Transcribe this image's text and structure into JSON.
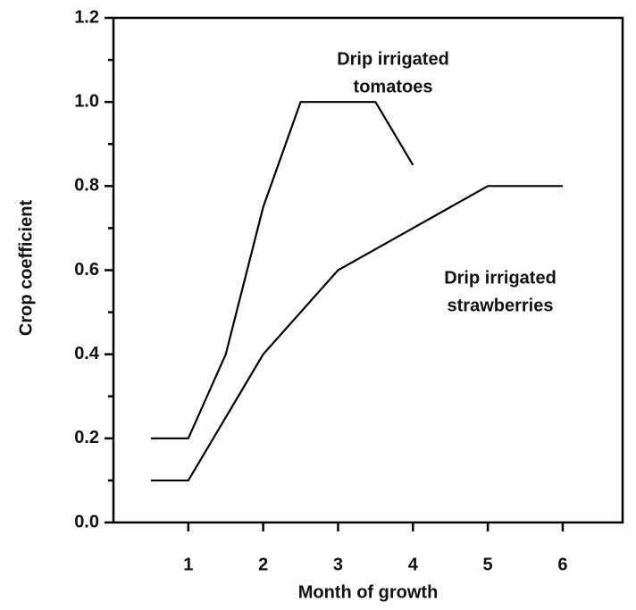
{
  "chart_data": {
    "type": "line",
    "x_label": "Month of growth",
    "y_label": "Crop coefficient",
    "xlim": [
      0,
      6.8
    ],
    "xticks": [
      1,
      2,
      3,
      4,
      5,
      6
    ],
    "ylim": [
      0,
      1.2
    ],
    "yticks": [
      {
        "value": 0,
        "label": "0.0"
      },
      0.2,
      0.4,
      0.6,
      0.8,
      {
        "value": 1,
        "label": "1.0"
      },
      1.2
    ],
    "yminorticks": [
      0.1,
      0.3,
      0.5,
      0.7,
      0.9,
      1.1
    ],
    "series": [
      {
        "label": [
          "Drip irrigated",
          "tomatoes"
        ],
        "color": "#000000",
        "x": [
          0.5,
          1,
          1.5,
          2,
          2.5,
          3.5,
          4
        ],
        "values": [
          0.2,
          0.2,
          0.4,
          0.75,
          1.0,
          1.0,
          0.85
        ]
      },
      {
        "label": [
          "Drip irrigated",
          "strawberries"
        ],
        "color": "#000000",
        "x": [
          0.5,
          1,
          2,
          3,
          4,
          5,
          6
        ],
        "values": [
          0.1,
          0.1,
          0.4,
          0.6,
          0.7,
          0.8,
          0.8
        ]
      }
    ]
  }
}
